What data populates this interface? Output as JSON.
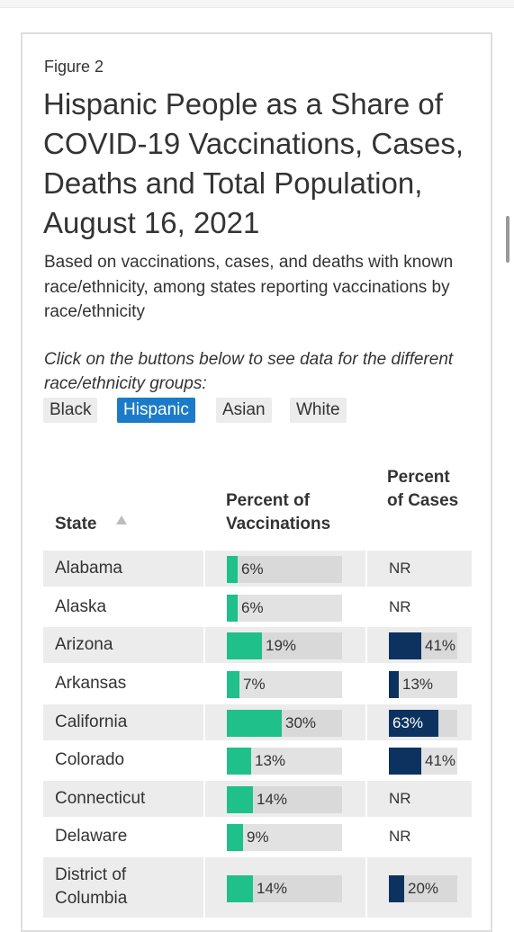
{
  "figure_label": "Figure 2",
  "title": "Hispanic People as a Share of COVID-19 Vaccinations, Cases, Deaths and Total Population, August 16, 2021",
  "subtitle": "Based on vaccinations, cases, and deaths with known race/ethnicity, among states reporting vaccinations by race/ethnicity",
  "instructions": "Click on the buttons below to see data for the different race/ethnicity groups:",
  "buttons": [
    {
      "label": "Black",
      "active": false
    },
    {
      "label": "Hispanic",
      "active": true
    },
    {
      "label": "Asian",
      "active": false
    },
    {
      "label": "White",
      "active": false
    }
  ],
  "columns": {
    "state": "State",
    "vaccinations": "Percent of Vaccinations",
    "cases": "Percent of Cases"
  },
  "colors": {
    "vaccination_bar": "#1fc08a",
    "case_bar": "#0c3360",
    "active_button": "#1c7bc8"
  },
  "rows": [
    {
      "state": "Alabama",
      "vacc": 6,
      "vacc_label": "6%",
      "cases": null,
      "cases_label": "NR"
    },
    {
      "state": "Alaska",
      "vacc": 6,
      "vacc_label": "6%",
      "cases": null,
      "cases_label": "NR"
    },
    {
      "state": "Arizona",
      "vacc": 19,
      "vacc_label": "19%",
      "cases": 41,
      "cases_label": "41%"
    },
    {
      "state": "Arkansas",
      "vacc": 7,
      "vacc_label": "7%",
      "cases": 13,
      "cases_label": "13%"
    },
    {
      "state": "California",
      "vacc": 30,
      "vacc_label": "30%",
      "cases": 63,
      "cases_label": "63%"
    },
    {
      "state": "Colorado",
      "vacc": 13,
      "vacc_label": "13%",
      "cases": 41,
      "cases_label": "41%"
    },
    {
      "state": "Connecticut",
      "vacc": 14,
      "vacc_label": "14%",
      "cases": null,
      "cases_label": "NR"
    },
    {
      "state": "Delaware",
      "vacc": 9,
      "vacc_label": "9%",
      "cases": null,
      "cases_label": "NR"
    },
    {
      "state": "District of Columbia",
      "vacc": 14,
      "vacc_label": "14%",
      "cases": 20,
      "cases_label": "20%"
    }
  ]
}
